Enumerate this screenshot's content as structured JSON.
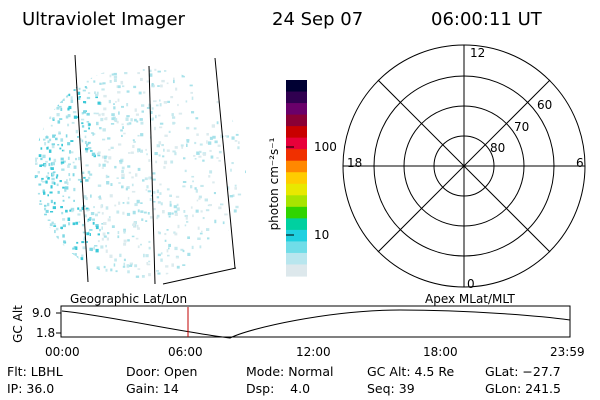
{
  "header": {
    "instrument": "Ultraviolet Imager",
    "date": "24 Sep 07",
    "time": "06:00:11 UT"
  },
  "image_panel": {
    "caption": "Geographic Lat/Lon"
  },
  "color_bar": {
    "unit_label": "photon cm⁻²s⁻¹",
    "ticks": [
      "100",
      "10"
    ],
    "colors": [
      "#000033",
      "#300050",
      "#6a006a",
      "#8a0035",
      "#c80000",
      "#e8003a",
      "#f03000",
      "#ff8800",
      "#ffcc00",
      "#e8e800",
      "#a8e400",
      "#30d400",
      "#00d0a0",
      "#20d0e0",
      "#70dde8",
      "#b8e6ee",
      "#dde8ec"
    ]
  },
  "polar_panel": {
    "caption": "Apex MLat/MLT",
    "mlt_labels": {
      "top": "12",
      "right": "6",
      "bottom": "0",
      "left": "18"
    },
    "mlat_labels": [
      "60",
      "70",
      "80"
    ]
  },
  "timeline": {
    "ylabel": "GC Alt",
    "yticks": [
      "9.0",
      "1.8"
    ],
    "xticks": [
      "00:00",
      "06:00",
      "12:00",
      "18:00",
      "23:59"
    ]
  },
  "info": {
    "flt": "Flt: LBHL",
    "ip": "IP: 36.0",
    "door": "Door: Open",
    "gain": "Gain: 14",
    "mode": "Mode: Normal",
    "dsp": "Dsp:    4.0",
    "gc_alt": "GC Alt: 4.5 Re",
    "seq": "Seq: 39",
    "glat": "GLat: −27.7",
    "glon": "GLon: 241.5"
  }
}
